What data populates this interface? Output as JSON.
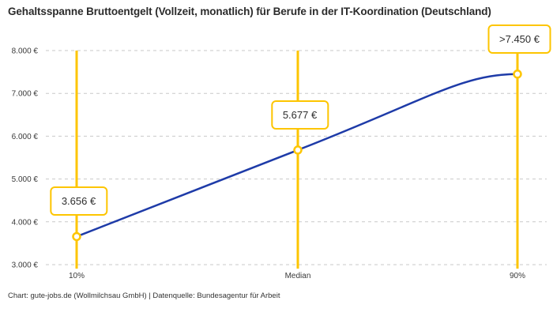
{
  "title": "Gehaltsspanne Bruttoentgelt (Vollzeit, monatlich) für Berufe in der IT-Koordination (Deutschland)",
  "footer": "Chart: gute-jobs.de (Wollmilchsau GmbH) | Datenquelle: Bundesagentur für Arbeit",
  "colors": {
    "line": "#1e3ba8",
    "accent": "#fdc500",
    "grid": "#c9c9c9",
    "text": "#2d2d2d",
    "tick_text": "#3a3a3a"
  },
  "chart_data": {
    "type": "line",
    "title": "Gehaltsspanne Bruttoentgelt (Vollzeit, monatlich) für Berufe in der IT-Koordination (Deutschland)",
    "categories": [
      "10%",
      "Median",
      "90%"
    ],
    "values": [
      3656,
      5677,
      7450
    ],
    "value_labels": [
      "3.656 €",
      "5.677 €",
      ">7.450 €"
    ],
    "series": [
      {
        "name": "Bruttoentgelt",
        "values": [
          3656,
          5677,
          7450
        ]
      }
    ],
    "xlabel": "",
    "ylabel": "",
    "ylim": [
      3000,
      8000
    ],
    "yticks": [
      3000,
      4000,
      5000,
      6000,
      7000,
      8000
    ],
    "ytick_labels": [
      "3.000 €",
      "4.000 €",
      "5.000 €",
      "6.000 €",
      "7.000 €",
      "8.000 €"
    ],
    "grid": "horizontal-dashed",
    "legend_position": "none",
    "marker_style": "open-circle",
    "annotation_note": "last value is a lower bound (>7.450 €)"
  }
}
